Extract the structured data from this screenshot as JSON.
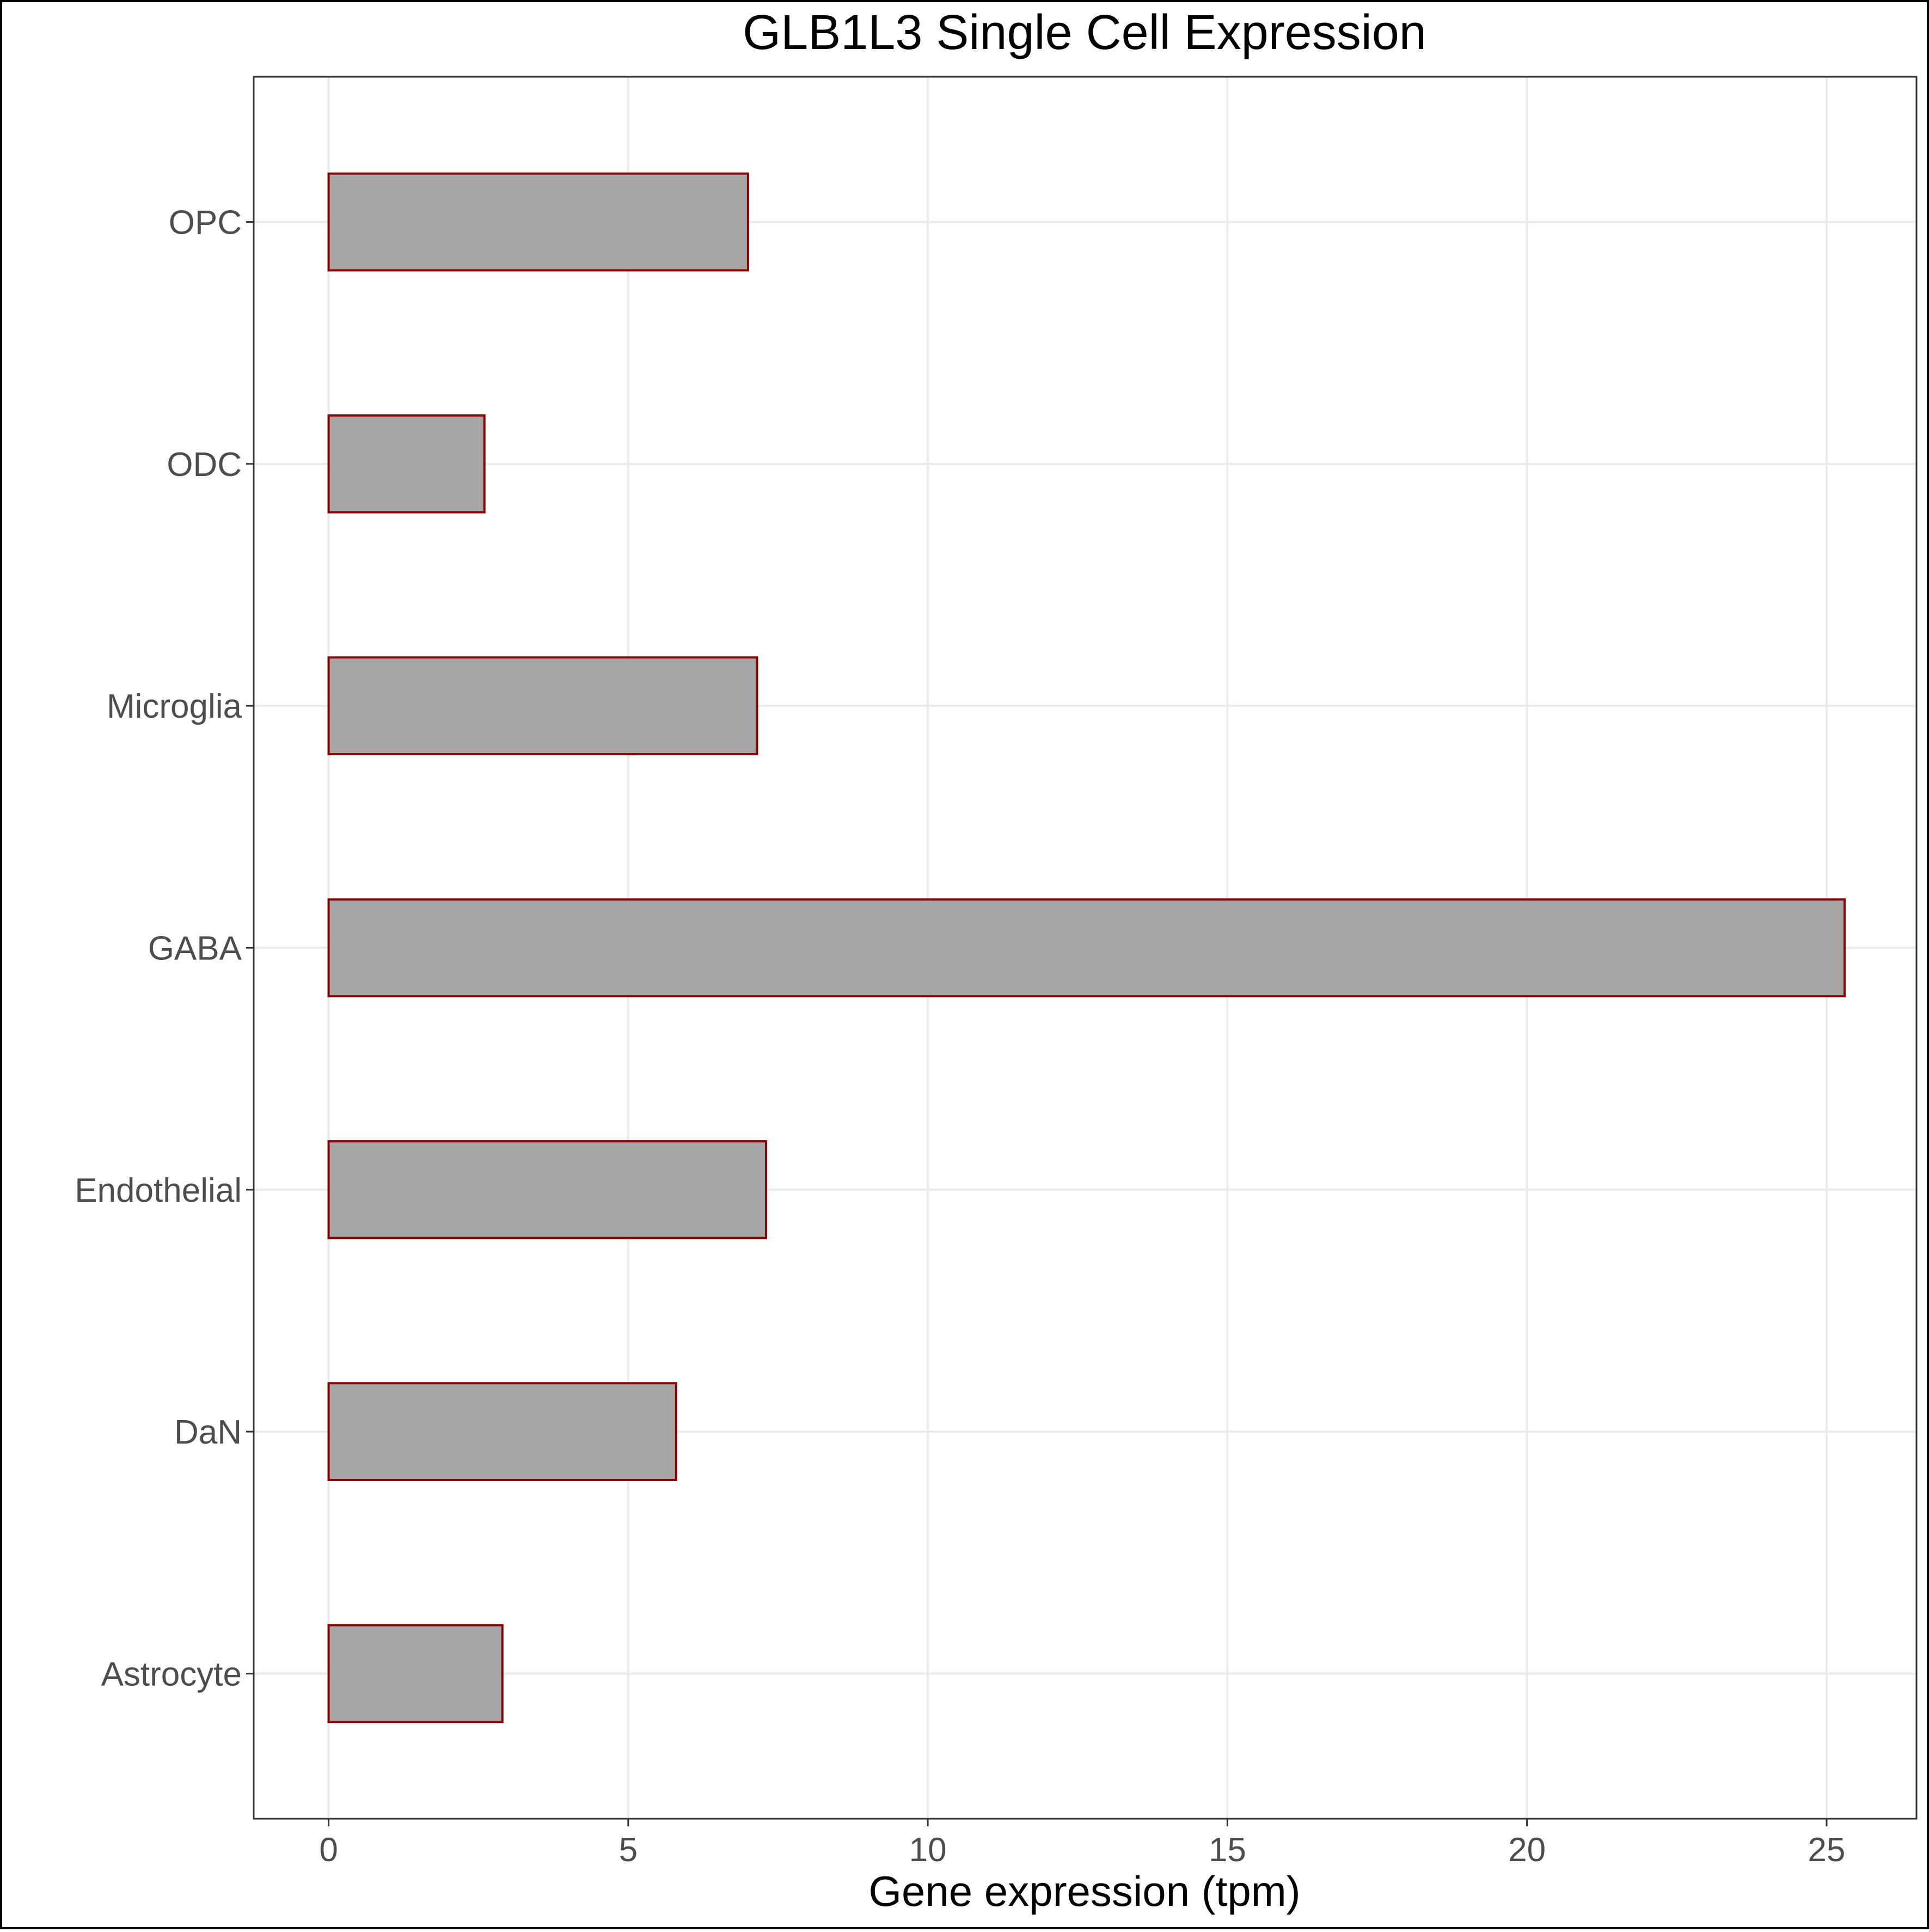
{
  "chart_data": {
    "type": "bar",
    "orientation": "horizontal",
    "title": "GLB1L3 Single Cell Expression",
    "xlabel": "Gene expression (tpm)",
    "ylabel": "",
    "categories": [
      "Astrocyte",
      "DaN",
      "Endothelial",
      "GABA",
      "Microglia",
      "ODC",
      "OPC"
    ],
    "values": [
      2.9,
      5.8,
      7.3,
      25.3,
      7.15,
      2.6,
      7.0
    ],
    "xlim": [
      -1.25,
      26.5
    ],
    "xticks": [
      0,
      5,
      10,
      15,
      20,
      25
    ],
    "grid": true,
    "legend": "none",
    "colors": {
      "bar_fill": "#a6a6a6",
      "bar_stroke": "#8b0000",
      "grid": "#ebebeb",
      "tick": "#333333",
      "frame": "#333333"
    }
  }
}
